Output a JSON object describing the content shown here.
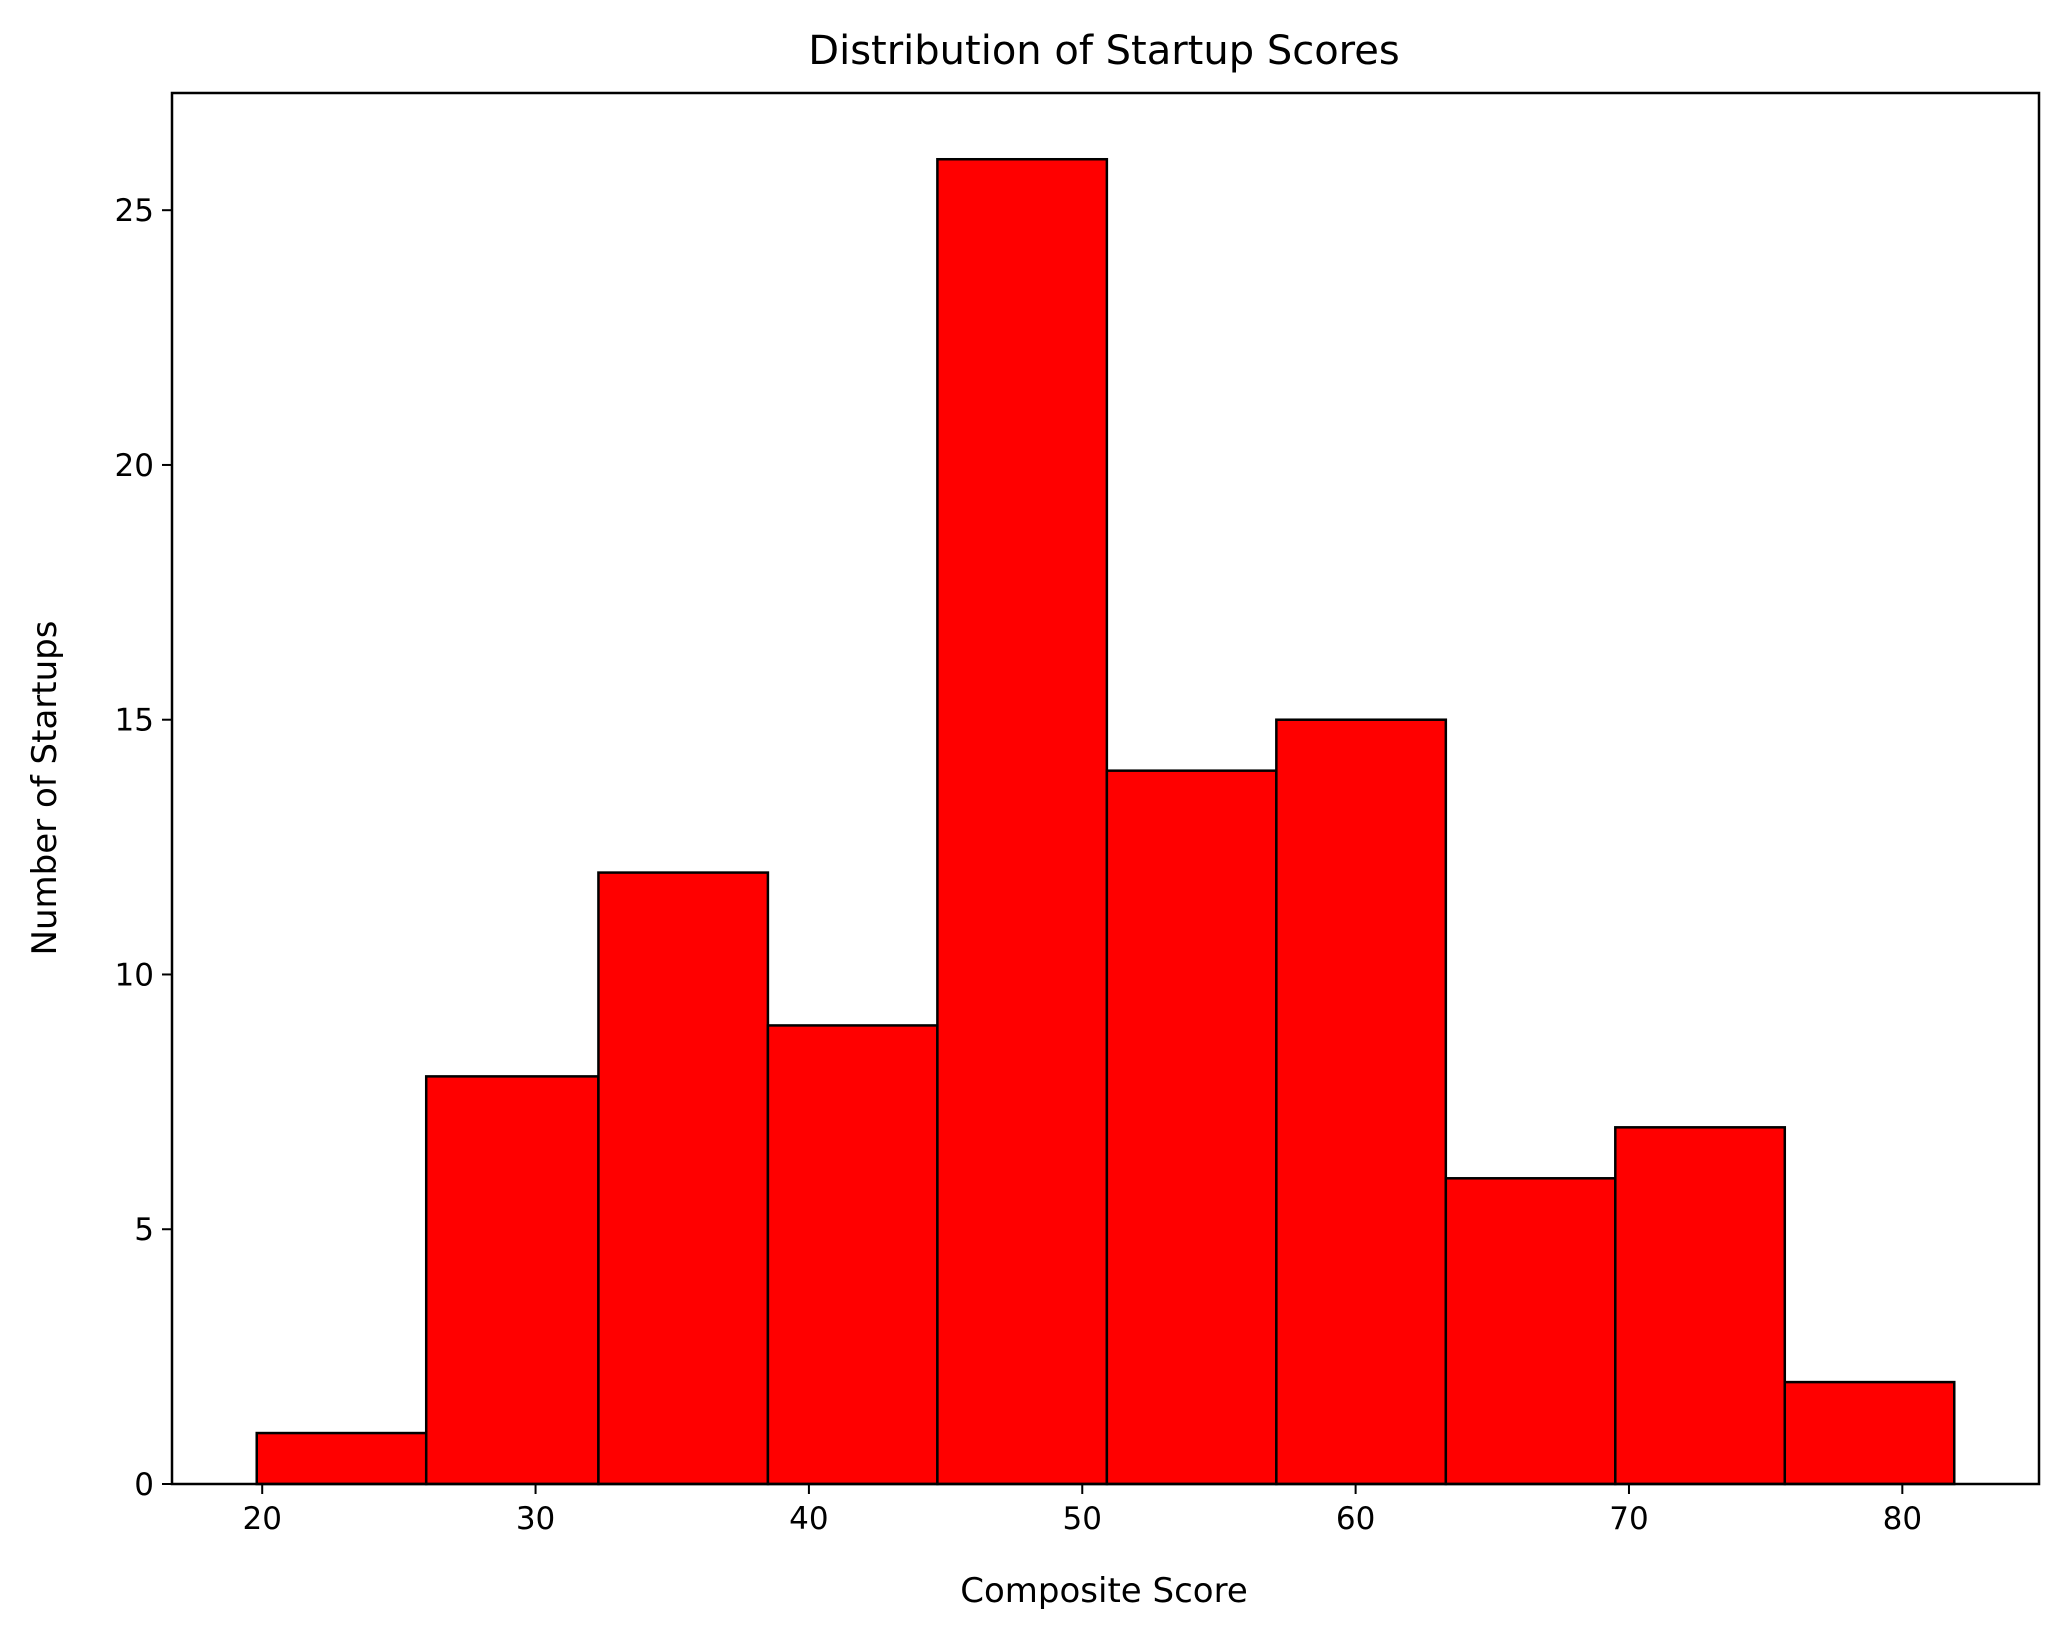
{
  "chart_data": {
    "type": "bar",
    "title": "Distribution of Startup Scores",
    "xlabel": "Composite Score",
    "ylabel": "Number of Startups",
    "bins": [
      {
        "start": 19.8,
        "end": 26.0,
        "count": 1
      },
      {
        "start": 26.0,
        "end": 32.3,
        "count": 8
      },
      {
        "start": 32.3,
        "end": 38.5,
        "count": 12
      },
      {
        "start": 38.5,
        "end": 44.7,
        "count": 9
      },
      {
        "start": 44.7,
        "end": 50.9,
        "count": 26
      },
      {
        "start": 50.9,
        "end": 57.1,
        "count": 14
      },
      {
        "start": 57.1,
        "end": 63.3,
        "count": 15
      },
      {
        "start": 63.3,
        "end": 69.5,
        "count": 6
      },
      {
        "start": 69.5,
        "end": 75.7,
        "count": 7
      },
      {
        "start": 75.7,
        "end": 81.9,
        "count": 2
      }
    ],
    "xlim": [
      16.7,
      85.0
    ],
    "ylim": [
      0,
      27.3
    ],
    "xticks": [
      "20",
      "30",
      "40",
      "50",
      "60",
      "70",
      "80"
    ],
    "yticks": [
      "0",
      "5",
      "10",
      "15",
      "20",
      "25"
    ],
    "grid": false,
    "bar_color": "#ff0000",
    "edge_color": "#000000"
  }
}
